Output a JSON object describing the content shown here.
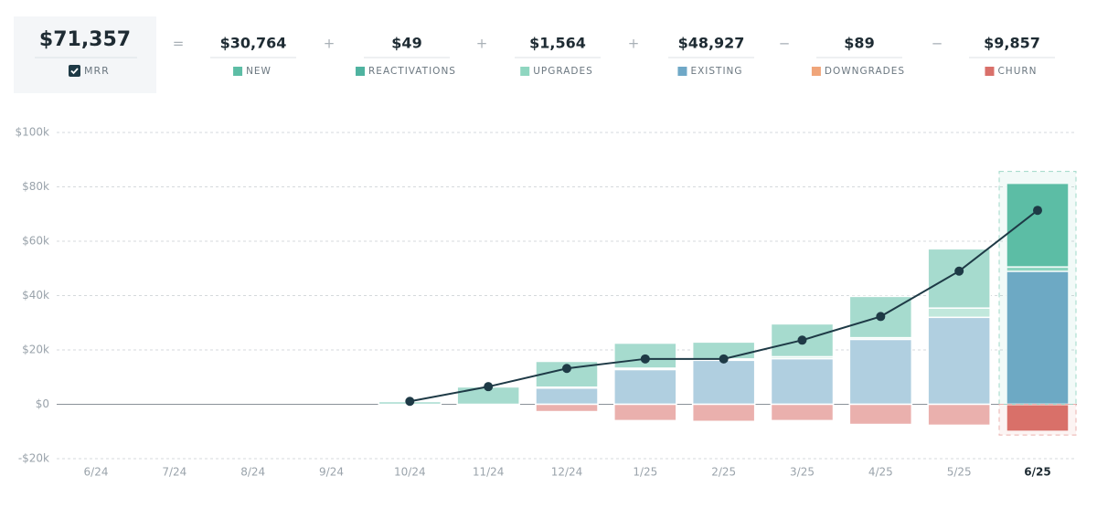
{
  "summary": {
    "mrr_value": "$71,357",
    "mrr_label": "MRR",
    "items": [
      {
        "operator": "=",
        "value": "$30,764"
      },
      {
        "operator": "+",
        "value": "$49"
      },
      {
        "operator": "+",
        "value": "$1,564"
      },
      {
        "operator": "+",
        "value": "$48,927"
      },
      {
        "operator": "−",
        "value": "$89"
      },
      {
        "operator": "−",
        "value": "$9,857"
      }
    ]
  },
  "chart_data": {
    "type": "stacked_bar_line",
    "categories": [
      "6/24",
      "7/24",
      "8/24",
      "9/24",
      "10/24",
      "11/24",
      "12/24",
      "1/25",
      "2/25",
      "3/25",
      "4/25",
      "5/25",
      "6/25"
    ],
    "series": [
      {
        "name": "NEW",
        "color": "#5dbda5",
        "stack": "pos",
        "values": [
          0,
          0,
          0,
          0,
          1000,
          6400,
          9500,
          9200,
          6200,
          12100,
          15200,
          21800,
          30764
        ]
      },
      {
        "name": "REACTIVATIONS",
        "color": "#4fb3a0",
        "stack": "pos",
        "values": [
          0,
          0,
          0,
          0,
          0,
          0,
          0,
          0,
          0,
          0,
          0,
          0,
          49
        ]
      },
      {
        "name": "UPGRADES",
        "color": "#8fd6c0",
        "stack": "pos",
        "values": [
          0,
          0,
          0,
          0,
          0,
          0,
          300,
          500,
          500,
          700,
          600,
          3400,
          1564
        ]
      },
      {
        "name": "EXISTING",
        "color": "#6fa8c7",
        "stack": "pos",
        "values": [
          0,
          0,
          0,
          0,
          0,
          0,
          6000,
          12800,
          16200,
          16800,
          23900,
          32000,
          48927
        ]
      },
      {
        "name": "DOWNGRADES",
        "color": "#f0a57a",
        "stack": "neg",
        "values": [
          0,
          0,
          0,
          0,
          0,
          0,
          0,
          0,
          0,
          0,
          0,
          0,
          -89
        ]
      },
      {
        "name": "CHURN",
        "color": "#d9706a",
        "stack": "neg",
        "values": [
          0,
          0,
          0,
          0,
          0,
          0,
          -2700,
          -6000,
          -6300,
          -6000,
          -7400,
          -7700,
          -9857
        ]
      }
    ],
    "line": {
      "name": "MRR",
      "color": "#1e3a46",
      "values": [
        null,
        null,
        null,
        null,
        1100,
        6500,
        13200,
        16700,
        16700,
        23600,
        32300,
        49000,
        71357
      ]
    },
    "ylim": [
      -20000,
      100000
    ],
    "yticks": [
      {
        "value": -20000,
        "label": "-$20k"
      },
      {
        "value": 0,
        "label": "$0"
      },
      {
        "value": 20000,
        "label": "$20k"
      },
      {
        "value": 40000,
        "label": "$40k"
      },
      {
        "value": 60000,
        "label": "$60k"
      },
      {
        "value": 80000,
        "label": "$80k"
      },
      {
        "value": 100000,
        "label": "$100k"
      }
    ],
    "grid": true
  }
}
